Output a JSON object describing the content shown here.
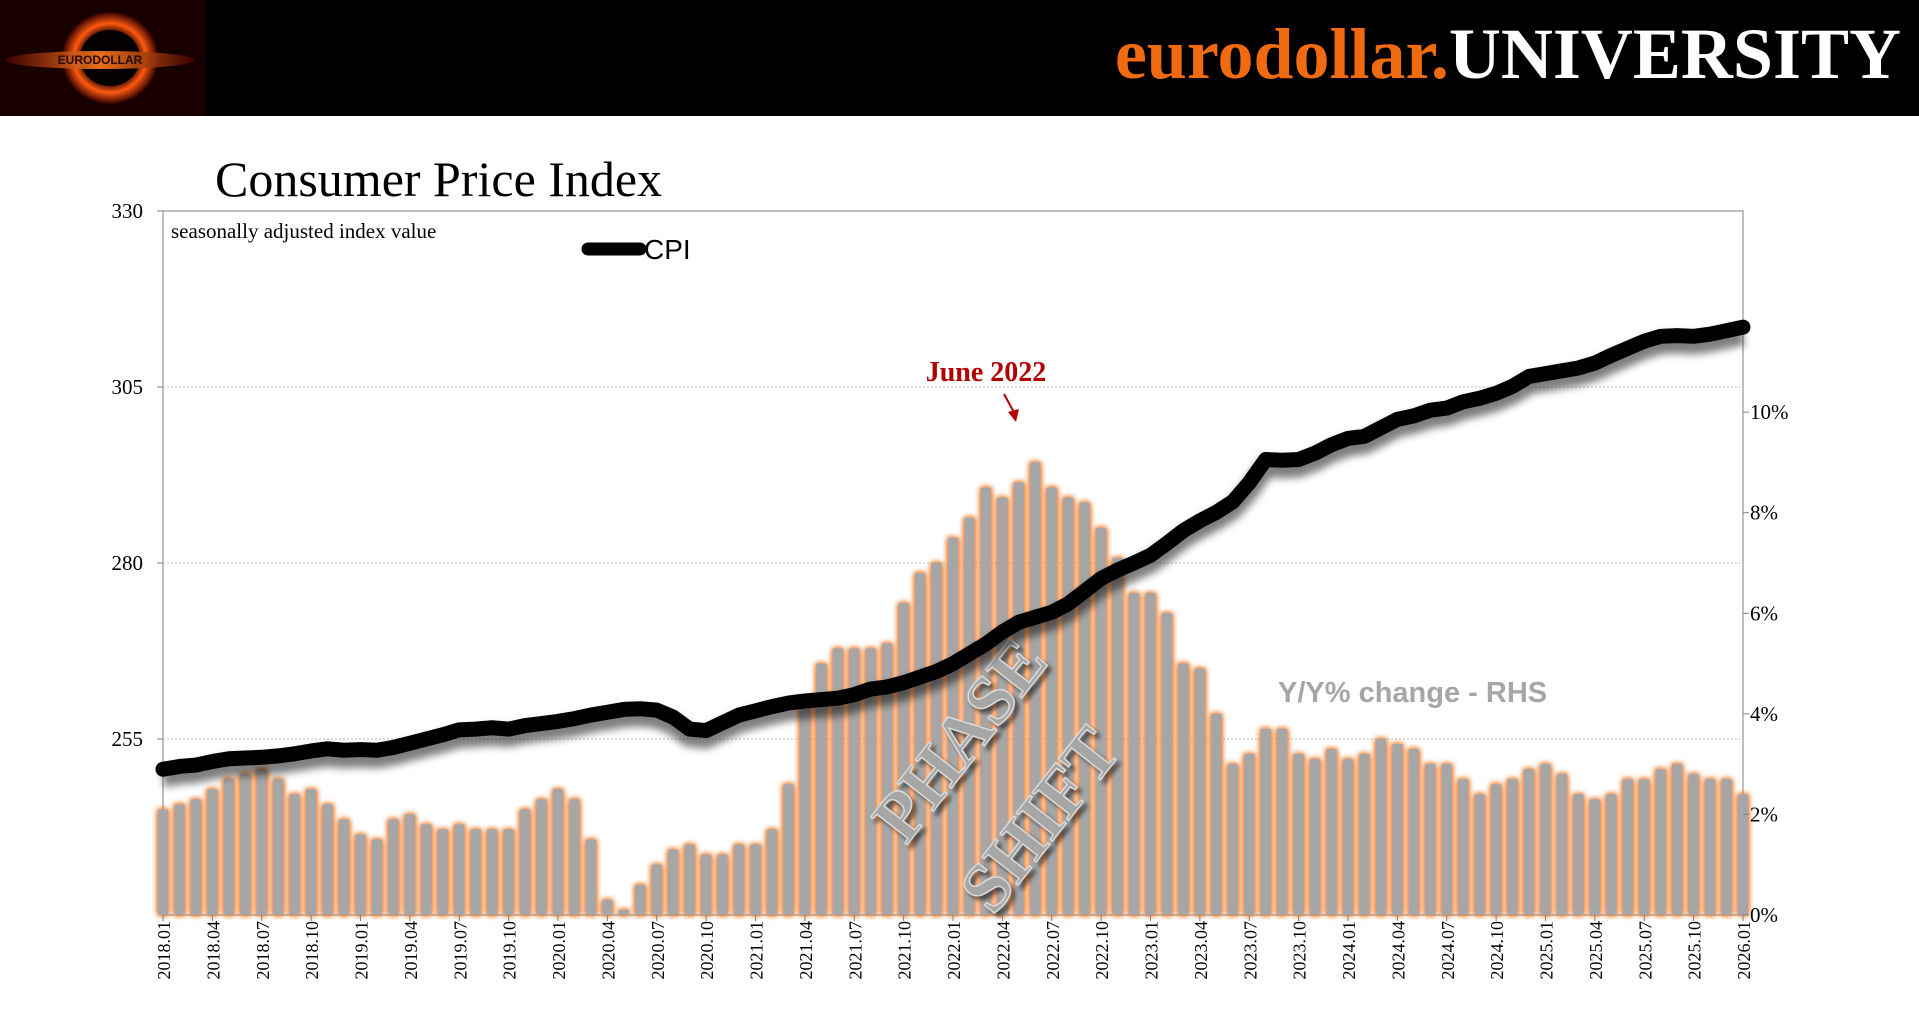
{
  "header": {
    "brand_part1": "eurodollar.",
    "brand_part2": "UNIVERSITY",
    "logo_text": "EURODOLLAR"
  },
  "chart_data": {
    "type": "bar+line",
    "title": "Consumer Price Index",
    "subtitle": "seasonally adjusted index value",
    "legend": [
      {
        "name": "CPI",
        "style": "thick black line"
      }
    ],
    "left_axis": {
      "ylim": [
        230,
        330
      ],
      "ticks": [
        "330",
        "305",
        "280",
        "255"
      ],
      "tick_values": [
        330,
        305,
        280,
        255
      ]
    },
    "right_axis": {
      "ylim": [
        0,
        14
      ],
      "ticks": [
        "10%",
        "8%",
        "6%",
        "4%",
        "2%",
        "0%"
      ],
      "tick_values": [
        10,
        8,
        6,
        4,
        2,
        0
      ],
      "label": "Y/Y% change - RHS"
    },
    "x_tick_labels": [
      "2018.01",
      "2018.04",
      "2018.07",
      "2018.10",
      "2019.01",
      "2019.04",
      "2019.07",
      "2019.10",
      "2020.01",
      "2020.04",
      "2020.07",
      "2020.10",
      "2021.01",
      "2021.04",
      "2021.07",
      "2021.10",
      "2022.01",
      "2022.04",
      "2022.07",
      "2022.10",
      "2023.01",
      "2023.04",
      "2023.07",
      "2023.10",
      "2024.01",
      "2024.04",
      "2024.07",
      "2024.10",
      "2025.01",
      "2025.04",
      "2025.07",
      "2025.10",
      "2026.01"
    ],
    "months_start": "2018.01",
    "months_count": 97,
    "cpi_series": [
      250.7,
      251.1,
      251.3,
      251.8,
      252.2,
      252.3,
      252.4,
      252.6,
      252.9,
      253.3,
      253.6,
      253.4,
      253.5,
      253.4,
      253.8,
      254.4,
      255.0,
      255.6,
      256.3,
      256.4,
      256.6,
      256.4,
      256.9,
      257.2,
      257.5,
      257.9,
      258.4,
      258.8,
      259.2,
      259.3,
      259.1,
      258.1,
      256.4,
      256.2,
      257.3,
      258.4,
      259.0,
      259.6,
      260.1,
      260.4,
      260.6,
      260.8,
      261.3,
      262.1,
      262.4,
      263.0,
      263.8,
      264.6,
      265.7,
      267.1,
      268.5,
      270.2,
      271.6,
      272.3,
      273.0,
      274.2,
      276.0,
      277.8,
      279.0,
      280.0,
      281.1,
      282.8,
      284.6,
      286.0,
      287.2,
      288.7,
      291.4,
      294.7,
      294.6,
      294.7,
      295.6,
      296.8,
      297.7,
      298.0,
      299.2,
      300.4,
      300.9,
      301.7,
      302.0,
      302.9,
      303.4,
      304.1,
      305.1,
      306.5,
      306.9,
      307.3,
      307.7,
      308.4,
      309.5,
      310.5,
      311.5,
      312.2,
      312.3,
      312.2,
      312.5,
      313.0,
      313.5
    ],
    "yoy_series": [
      2.1,
      2.2,
      2.3,
      2.5,
      2.7,
      2.8,
      2.9,
      2.7,
      2.4,
      2.5,
      2.2,
      1.9,
      1.6,
      1.5,
      1.9,
      2.0,
      1.8,
      1.7,
      1.8,
      1.7,
      1.7,
      1.7,
      2.1,
      2.3,
      2.5,
      2.3,
      1.5,
      0.3,
      0.1,
      0.6,
      1.0,
      1.3,
      1.4,
      1.2,
      1.2,
      1.4,
      1.4,
      1.7,
      2.6,
      4.2,
      5.0,
      5.3,
      5.3,
      5.3,
      5.4,
      6.2,
      6.8,
      7.0,
      7.5,
      7.9,
      8.5,
      8.3,
      8.6,
      9.0,
      8.5,
      8.3,
      8.2,
      7.7,
      7.1,
      6.4,
      6.4,
      6.0,
      5.0,
      4.9,
      4.0,
      3.0,
      3.2,
      3.7,
      3.7,
      3.2,
      3.1,
      3.3,
      3.1,
      3.2,
      3.5,
      3.4,
      3.3,
      3.0,
      3.0,
      2.7,
      2.4,
      2.6,
      2.7,
      2.9,
      3.0,
      2.8,
      2.4,
      2.3,
      2.4,
      2.7,
      2.7,
      2.9,
      3.0,
      2.8,
      2.7,
      2.7,
      2.4
    ],
    "annotations": [
      {
        "text": "June 2022",
        "at": "2022.06",
        "color": "#b00000"
      },
      {
        "text": "PHASE",
        "style": "rotated watermark"
      },
      {
        "text": "SHIFT",
        "style": "rotated watermark"
      }
    ],
    "colors": {
      "bar_fill": "#a6a6a6",
      "bar_glow": "#f07018",
      "line": "#000000",
      "annotation": "#b00000",
      "rhs_label": "#a6a6a6"
    }
  }
}
